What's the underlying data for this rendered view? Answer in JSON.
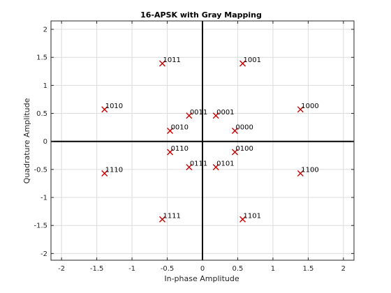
{
  "chart_data": {
    "type": "scatter",
    "title": "16-APSK with Gray Mapping",
    "xlabel": "In-phase Amplitude",
    "ylabel": "Quadrature Amplitude",
    "xlim": [
      -2.15,
      2.15
    ],
    "ylim": [
      -2.12,
      2.15
    ],
    "xticks": [
      -2,
      -1.5,
      -1,
      -0.5,
      0,
      0.5,
      1,
      1.5,
      2
    ],
    "xtick_labels": [
      "-2",
      "-1.5",
      "-1",
      "-0.5",
      "0",
      "0.5",
      "1",
      "1.5",
      "2"
    ],
    "yticks": [
      -2,
      -1.5,
      -1,
      -0.5,
      0,
      0.5,
      1,
      1.5,
      2
    ],
    "ytick_labels": [
      "-2",
      "-1.5",
      "-1",
      "-0.5",
      "0",
      "0.5",
      "1",
      "1.5",
      "2"
    ],
    "grid": true,
    "marker": "x",
    "marker_color": "#cc0000",
    "points": [
      {
        "x": 0.46,
        "y": 0.19,
        "label": "0000"
      },
      {
        "x": 0.19,
        "y": 0.46,
        "label": "0001"
      },
      {
        "x": -0.46,
        "y": 0.19,
        "label": "0010"
      },
      {
        "x": -0.19,
        "y": 0.46,
        "label": "0011"
      },
      {
        "x": 0.46,
        "y": -0.19,
        "label": "0100"
      },
      {
        "x": 0.19,
        "y": -0.46,
        "label": "0101"
      },
      {
        "x": -0.46,
        "y": -0.19,
        "label": "0110"
      },
      {
        "x": -0.19,
        "y": -0.46,
        "label": "0111"
      },
      {
        "x": 1.39,
        "y": 0.57,
        "label": "1000"
      },
      {
        "x": 0.57,
        "y": 1.39,
        "label": "1001"
      },
      {
        "x": -1.39,
        "y": 0.57,
        "label": "1010"
      },
      {
        "x": -0.57,
        "y": 1.39,
        "label": "1011"
      },
      {
        "x": 1.39,
        "y": -0.57,
        "label": "1100"
      },
      {
        "x": 0.57,
        "y": -1.39,
        "label": "1101"
      },
      {
        "x": -1.39,
        "y": -0.57,
        "label": "1110"
      },
      {
        "x": -0.57,
        "y": -1.39,
        "label": "1111"
      }
    ]
  }
}
